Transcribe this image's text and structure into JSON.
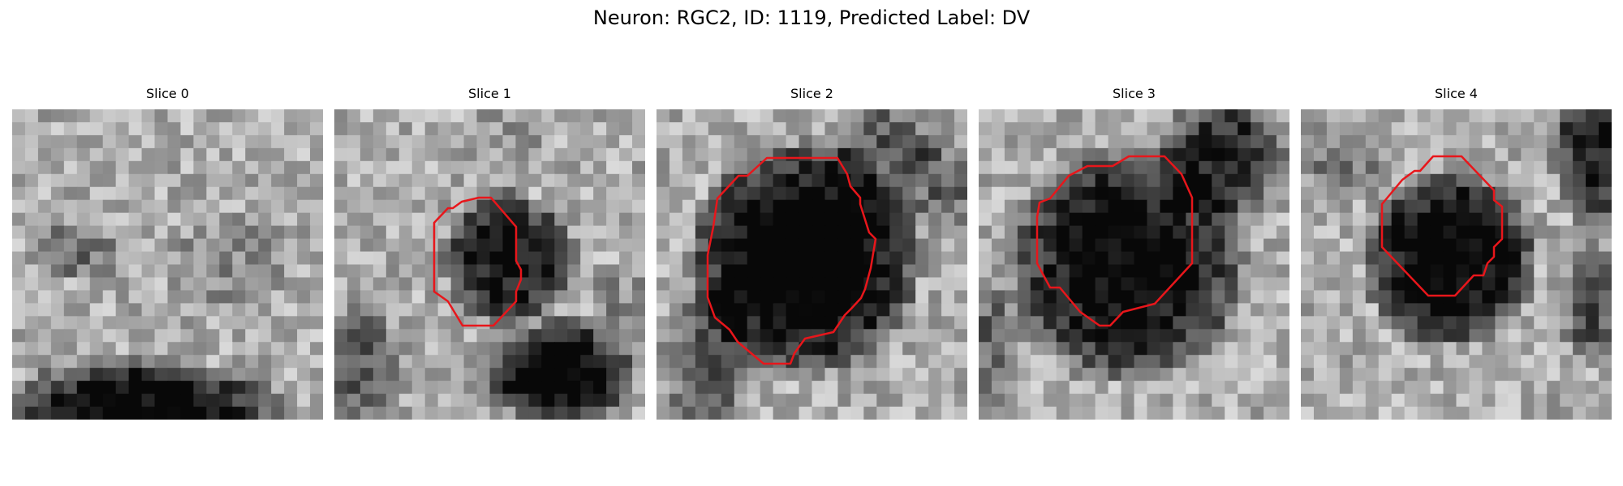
{
  "figure": {
    "title": "Neuron: RGC2, ID: 1119, Predicted Label: DV"
  },
  "slices": [
    {
      "title": "Slice 0",
      "has_contour": false
    },
    {
      "title": "Slice 1",
      "has_contour": true
    },
    {
      "title": "Slice 2",
      "has_contour": true
    },
    {
      "title": "Slice 3",
      "has_contour": true
    },
    {
      "title": "Slice 4",
      "has_contour": true
    }
  ],
  "colors": {
    "contour": "#e8161b",
    "background": "#ffffff"
  }
}
